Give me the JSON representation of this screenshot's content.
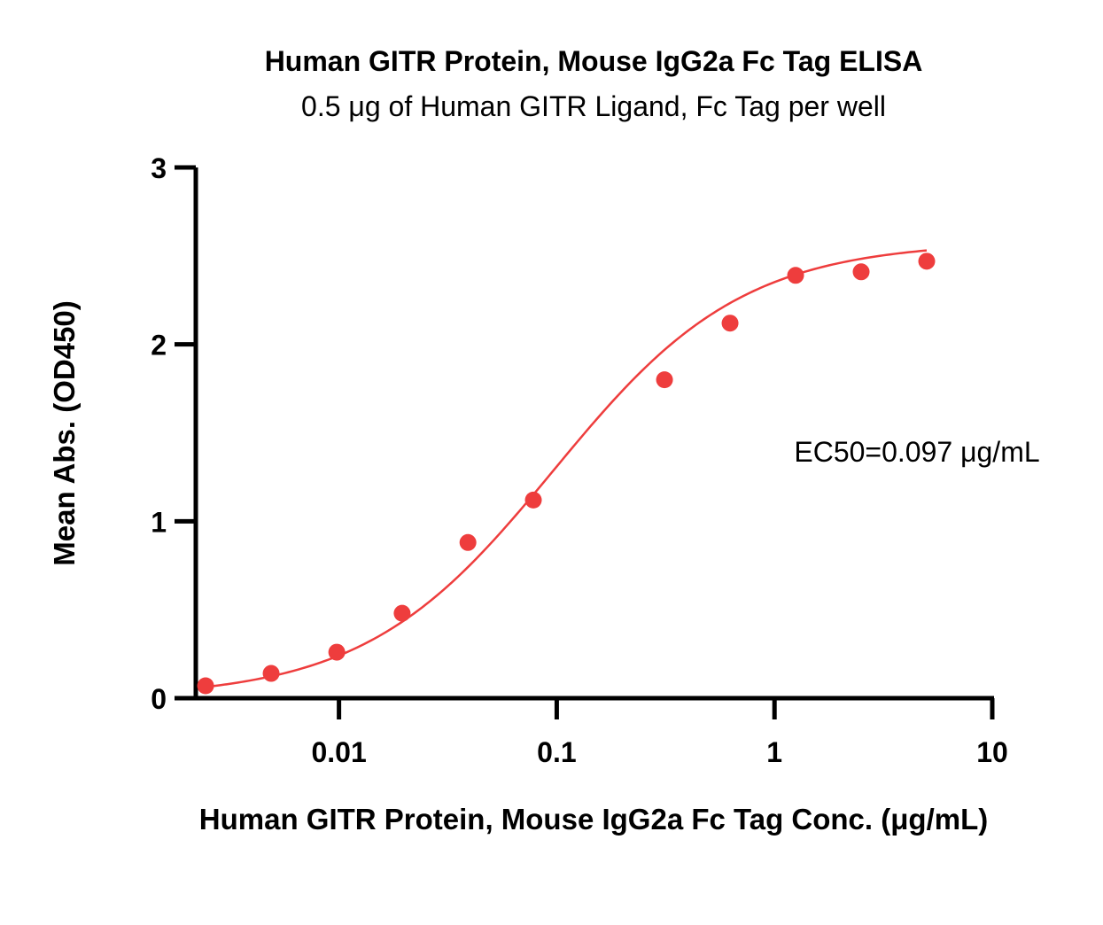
{
  "chart_data": {
    "type": "scatter",
    "title": "Human GITR Protein, Mouse IgG2a Fc Tag ELISA",
    "subtitle": "0.5 μg of Human GITR Ligand, Fc Tag per well",
    "xlabel": "Human GITR Protein, Mouse IgG2a Fc Tag Conc. (μg/mL)",
    "ylabel": "Mean Abs. (OD450)",
    "x_scale": "log",
    "xlim": [
      0.0022,
      10
    ],
    "ylim": [
      0,
      3
    ],
    "x_ticks": [
      0.01,
      0.1,
      1,
      10
    ],
    "x_tick_labels": [
      "0.01",
      "0.1",
      "1",
      "10"
    ],
    "y_ticks": [
      0,
      1,
      2,
      3
    ],
    "y_tick_labels": [
      "0",
      "1",
      "2",
      "3"
    ],
    "grid": false,
    "annotation": "EC50=0.097 μg/mL",
    "colors": {
      "series": "#ee3d3d",
      "axis": "#000000"
    },
    "series": [
      {
        "x": [
          0.00244,
          0.00488,
          0.00977,
          0.0195,
          0.0391,
          0.0781,
          0.156,
          0.3125,
          0.625,
          1.25,
          2.5,
          5
        ],
        "values": [
          0.07,
          0.14,
          0.26,
          0.48,
          0.88,
          1.12,
          null,
          1.8,
          2.12,
          2.39,
          2.41,
          2.47
        ]
      }
    ],
    "fit_curve": {
      "model": "4PL",
      "bottom": 0.0,
      "top": 2.58,
      "ec50": 0.097,
      "hill": 1.0
    }
  }
}
